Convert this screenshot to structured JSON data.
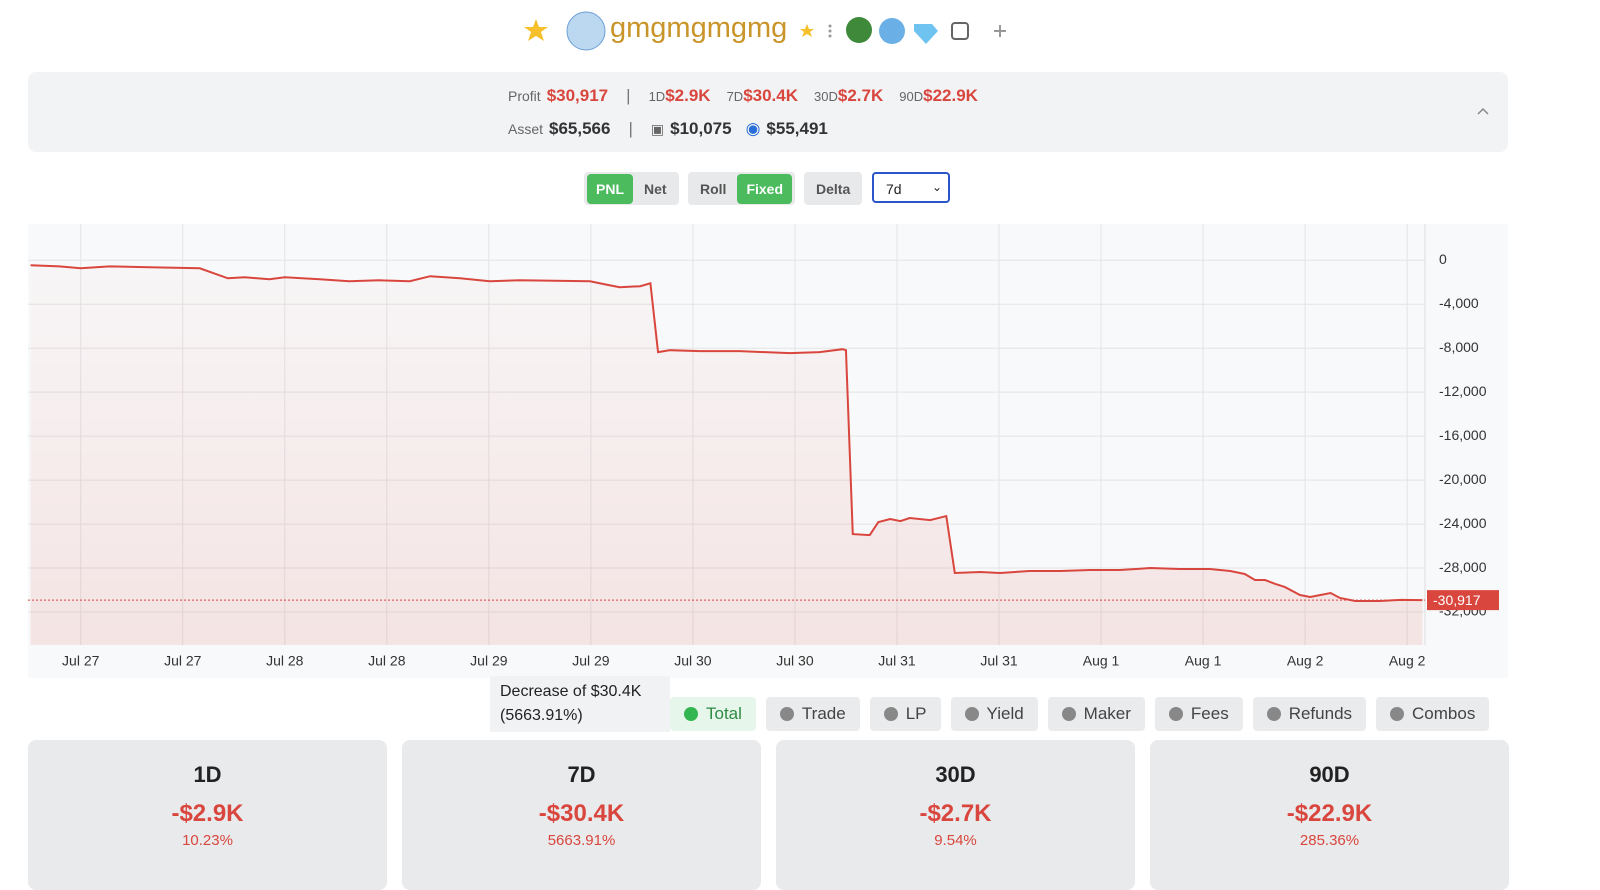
{
  "header": {
    "name": "gmgmgmgmg"
  },
  "summary": {
    "profit_label": "Profit",
    "profit": "$30,917",
    "periods": [
      {
        "label": "1D",
        "value": "$2.9K"
      },
      {
        "label": "7D",
        "value": "$30.4K"
      },
      {
        "label": "30D",
        "value": "$2.7K"
      },
      {
        "label": "90D",
        "value": "$22.9K"
      }
    ],
    "asset_label": "Asset",
    "asset": "$65,566",
    "wallet": "$10,075",
    "staked": "$55,491"
  },
  "controls": {
    "mode": [
      "PNL",
      "Net"
    ],
    "window": [
      "Roll",
      "Fixed"
    ],
    "delta": "Delta",
    "range": "7d"
  },
  "chart_data": {
    "type": "line",
    "x": [
      -5.9,
      -2.5,
      0,
      3.4,
      8.1,
      14,
      17.3,
      19.3,
      22.2,
      24,
      28.1,
      31.6,
      35.1,
      38.7,
      41.1,
      44.6,
      48.1,
      51.6,
      59.9,
      61.6,
      63.4,
      65.8,
      67,
      67.9,
      69.3,
      72.8,
      77.5,
      83.4,
      86.9,
      89.6,
      90,
      90.8,
      92.8,
      93.8,
      95.2,
      96.4,
      97.5,
      99.9,
      101.8,
      102.8,
      105.8,
      108.1,
      111.6,
      115.2,
      118.7,
      122.2,
      125.8,
      129.3,
      132.8,
      135.2,
      136.9,
      138.1,
      139.3,
      140.5,
      141.6,
      143.4,
      144.6,
      145.8,
      147,
      148.1,
      149.9,
      152.8,
      155.2,
      157.8
    ],
    "series": [
      {
        "name": "Total",
        "color": "#d9463e",
        "values": [
          -450,
          -550,
          -730,
          -550,
          -640,
          -730,
          -1640,
          -1550,
          -1730,
          -1550,
          -1730,
          -1910,
          -1820,
          -1910,
          -1450,
          -1640,
          -1910,
          -1820,
          -1910,
          -2180,
          -2450,
          -2360,
          -2090,
          -8360,
          -8180,
          -8270,
          -8270,
          -8450,
          -8360,
          -8090,
          -8180,
          -24910,
          -25000,
          -23820,
          -23540,
          -23730,
          -23450,
          -23640,
          -23270,
          -28450,
          -28360,
          -28450,
          -28270,
          -28270,
          -28180,
          -28180,
          -28000,
          -28090,
          -28090,
          -28270,
          -28540,
          -29090,
          -29090,
          -29450,
          -29720,
          -30450,
          -30630,
          -30450,
          -30270,
          -30720,
          -31000,
          -31000,
          -30900,
          -30917
        ]
      }
    ],
    "xlim": [
      -6.2,
      158.1
    ],
    "xticks": [
      {
        "value": 0,
        "label": "Jul 27"
      },
      {
        "value": 12,
        "label": "Jul 27"
      },
      {
        "value": 24,
        "label": "Jul 28"
      },
      {
        "value": 36,
        "label": "Jul 28"
      },
      {
        "value": 48,
        "label": "Jul 29"
      },
      {
        "value": 60,
        "label": "Jul 29"
      },
      {
        "value": 72,
        "label": "Jul 30"
      },
      {
        "value": 84,
        "label": "Jul 30"
      },
      {
        "value": 96,
        "label": "Jul 31"
      },
      {
        "value": 108,
        "label": "Jul 31"
      },
      {
        "value": 120,
        "label": "Aug 1"
      },
      {
        "value": 132,
        "label": "Aug 1"
      },
      {
        "value": 144,
        "label": "Aug 2"
      },
      {
        "value": 156,
        "label": "Aug 2"
      }
    ],
    "ylim": [
      -35000,
      3300
    ],
    "yticks": [
      0,
      {
        "value": -4000,
        "label": "-4,000"
      },
      {
        "value": -8000,
        "label": "-8,000"
      },
      {
        "value": -12000,
        "label": "-12,000"
      },
      {
        "value": -16000,
        "label": "-16,000"
      },
      {
        "value": -20000,
        "label": "-20,000"
      },
      {
        "value": -24000,
        "label": "-24,000"
      },
      {
        "value": -28000,
        "label": "-28,000"
      },
      {
        "value": -32000,
        "label": "-32,000"
      }
    ],
    "grid": true,
    "current": {
      "value": -30917,
      "label": "-30,917"
    },
    "tooltip": "Decrease of $30.4K (5663.91%)"
  },
  "legend": [
    "Total",
    "Trade",
    "LP",
    "Yield",
    "Maker",
    "Fees",
    "Refunds",
    "Combos"
  ],
  "cards": [
    {
      "period": "1D",
      "value": "-$2.9K",
      "pct": "10.23%"
    },
    {
      "period": "7D",
      "value": "-$30.4K",
      "pct": "5663.91%"
    },
    {
      "period": "30D",
      "value": "-$2.7K",
      "pct": "9.54%"
    },
    {
      "period": "90D",
      "value": "-$22.9K",
      "pct": "285.36%"
    }
  ]
}
